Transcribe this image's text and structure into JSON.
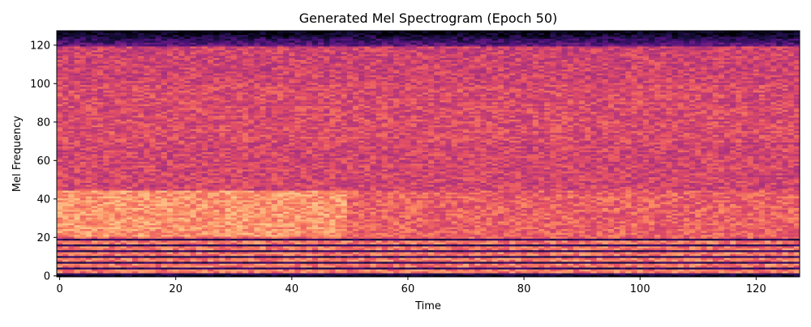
{
  "chart_data": {
    "type": "heatmap",
    "title": "Generated Mel Spectrogram (Epoch 50)",
    "xlabel": "Time",
    "ylabel": "Mel Frequency",
    "xlim": [
      -0.5,
      127.5
    ],
    "ylim": [
      -0.5,
      127.5
    ],
    "n_time_frames": 128,
    "n_mel_bins": 128,
    "x_ticks": [
      0,
      20,
      40,
      60,
      80,
      100,
      120
    ],
    "y_ticks": [
      0,
      20,
      40,
      60,
      80,
      100,
      120
    ],
    "colormap": "magma",
    "value_range": [
      0,
      1
    ],
    "grid": false,
    "legend": "none",
    "mean_intensity_by_mel_band": [
      {
        "mel": [
          0,
          2
        ],
        "level": 0.05
      },
      {
        "mel": [
          2,
          20
        ],
        "level": 0.72
      },
      {
        "mel": [
          20,
          45
        ],
        "level": 0.66
      },
      {
        "mel": [
          45,
          70
        ],
        "level": 0.58
      },
      {
        "mel": [
          70,
          100
        ],
        "level": 0.6
      },
      {
        "mel": [
          100,
          120
        ],
        "level": 0.57
      },
      {
        "mel": [
          120,
          128
        ],
        "level": 0.3
      }
    ]
  }
}
